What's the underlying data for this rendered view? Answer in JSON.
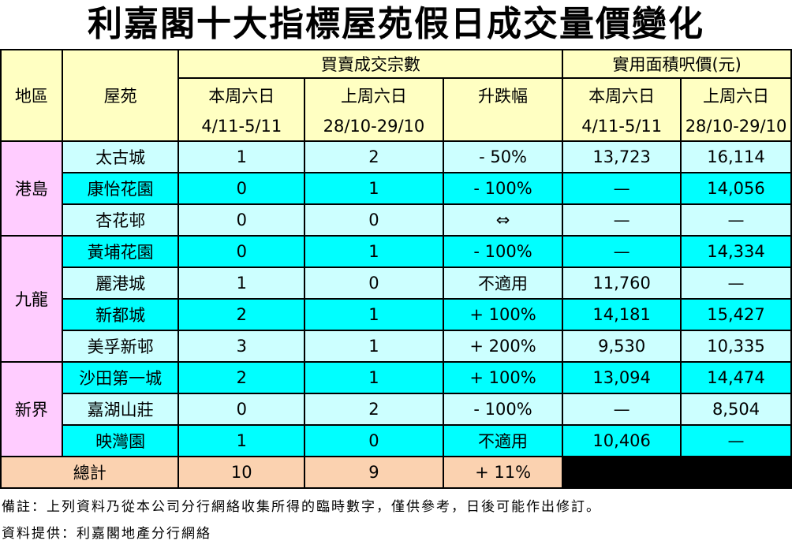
{
  "title": "利嘉閣十大指標屋苑假日成交量價變化",
  "headers": {
    "district": "地區",
    "estate": "屋苑",
    "transactions_group": "買賣成交宗數",
    "price_group": "實用面積呎價(元)",
    "this_week": "本周六日",
    "last_week": "上周六日",
    "change": "升跌幅",
    "this_week_dates": "4/11-5/11",
    "last_week_dates": "28/10-29/10"
  },
  "rows": [
    {
      "district": "港島",
      "estate": "太古城",
      "this_week": "1",
      "last_week": "2",
      "change": "- 50%",
      "price_this": "13,723",
      "price_last": "16,114"
    },
    {
      "estate": "康怡花園",
      "this_week": "0",
      "last_week": "1",
      "change": "- 100%",
      "price_this": "—",
      "price_last": "14,056"
    },
    {
      "estate": "杏花邨",
      "this_week": "0",
      "last_week": "0",
      "change": "⇔",
      "price_this": "—",
      "price_last": "—"
    },
    {
      "district": "九龍",
      "estate": "黃埔花園",
      "this_week": "0",
      "last_week": "1",
      "change": "- 100%",
      "price_this": "—",
      "price_last": "14,334"
    },
    {
      "estate": "麗港城",
      "this_week": "1",
      "last_week": "0",
      "change": "不適用",
      "price_this": "11,760",
      "price_last": "—"
    },
    {
      "estate": "新都城",
      "this_week": "2",
      "last_week": "1",
      "change": "+ 100%",
      "price_this": "14,181",
      "price_last": "15,427"
    },
    {
      "estate": "美孚新邨",
      "this_week": "3",
      "last_week": "1",
      "change": "+ 200%",
      "price_this": "9,530",
      "price_last": "10,335"
    },
    {
      "district": "新界",
      "estate": "沙田第一城",
      "this_week": "2",
      "last_week": "1",
      "change": "+ 100%",
      "price_this": "13,094",
      "price_last": "14,474"
    },
    {
      "estate": "嘉湖山莊",
      "this_week": "0",
      "last_week": "2",
      "change": "- 100%",
      "price_this": "—",
      "price_last": "8,504"
    },
    {
      "estate": "映灣園",
      "this_week": "1",
      "last_week": "0",
      "change": "不適用",
      "price_this": "10,406",
      "price_last": "—"
    }
  ],
  "total": {
    "label": "總計",
    "this_week": "10",
    "last_week": "9",
    "change": "+ 11%"
  },
  "notes": {
    "remark": "備註：上列資料乃從本公司分行網絡收集所得的臨時數字，僅供參考，日後可能作出修訂。",
    "source": "資料提供：利嘉閣地產分行網絡"
  },
  "colors": {
    "header_bg": "#ffffc2",
    "district_bg": "#ffccff",
    "row_light": "#ccffff",
    "row_dark": "#00ffff",
    "total_bg": "#fbd2b0"
  }
}
